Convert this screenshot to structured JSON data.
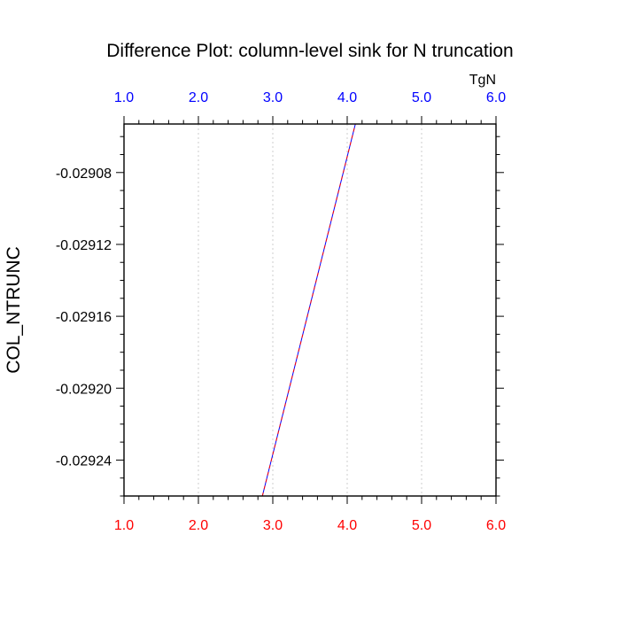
{
  "chart_data": {
    "type": "line",
    "title": "Difference Plot: column-level sink for N truncation",
    "xlabel": "",
    "ylabel": "COL_NTRUNC",
    "top_axis_units": "TgN",
    "xlim": [
      1.0,
      6.0
    ],
    "ylim": [
      -0.02926,
      -0.029053
    ],
    "x_ticks": [
      1.0,
      2.0,
      3.0,
      4.0,
      5.0,
      6.0
    ],
    "x_tick_labels": [
      "1.0",
      "2.0",
      "3.0",
      "4.0",
      "5.0",
      "6.0"
    ],
    "y_ticks": [
      -0.02908,
      -0.02912,
      -0.02916,
      -0.0292,
      -0.02924
    ],
    "y_tick_labels": [
      "-0.02908",
      "-0.02912",
      "-0.02916",
      "-0.02920",
      "-0.02924"
    ],
    "grid": "vertical dotted",
    "series": [
      {
        "x": [
          2.86,
          4.11
        ],
        "y": [
          -0.02926,
          -0.029053
        ],
        "colors": [
          "#0000ff",
          "#ff0000"
        ]
      }
    ],
    "colors": {
      "bottom_tick_labels": "#ff0000",
      "top_tick_labels": "#0000ff",
      "axis": "#000000",
      "grid": "#cccccc"
    }
  }
}
